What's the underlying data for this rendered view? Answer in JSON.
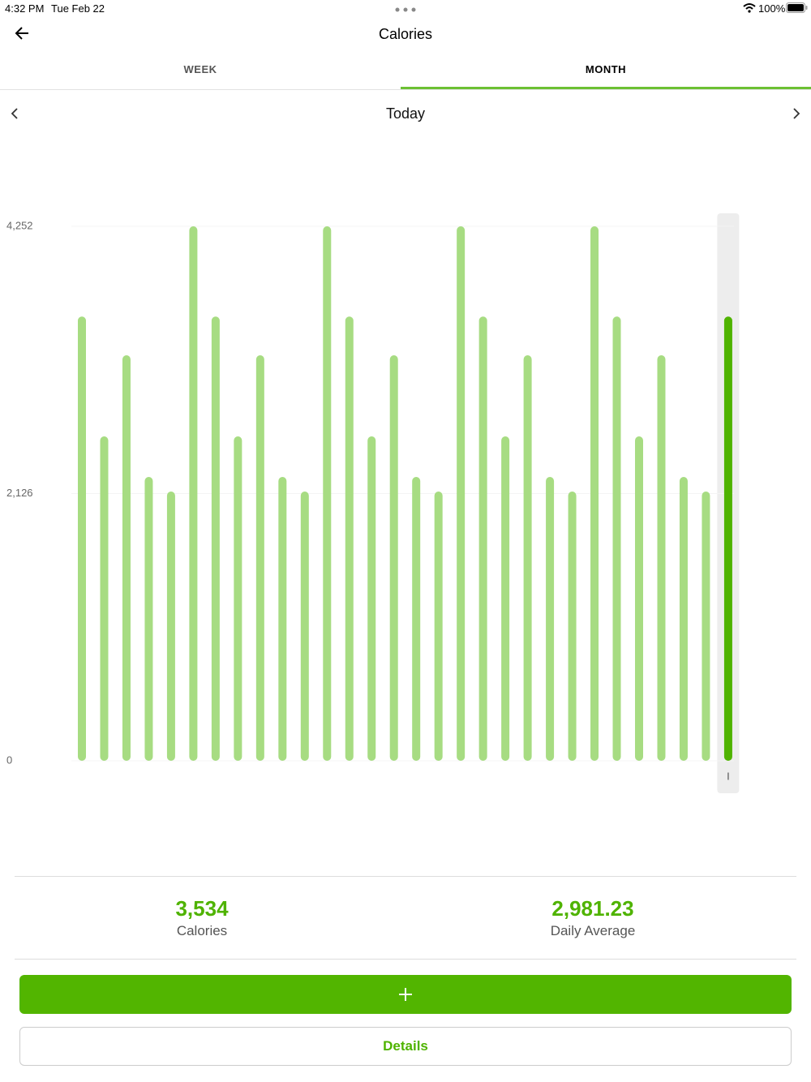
{
  "status_bar": {
    "time": "4:32 PM",
    "date": "Tue Feb 22",
    "battery": "100%"
  },
  "header": {
    "title": "Calories"
  },
  "tabs": [
    "WEEK",
    "MONTH"
  ],
  "period": "Today",
  "chart_data": {
    "type": "bar",
    "categories": [
      null,
      null,
      null,
      null,
      null,
      null,
      null,
      null,
      null,
      null,
      null,
      null,
      null,
      null,
      null,
      null,
      null,
      null,
      null,
      null,
      null,
      null,
      null,
      null,
      null,
      null,
      null,
      null,
      null,
      "I"
    ],
    "values": [
      3534,
      2581,
      3226,
      2258,
      2142,
      4252,
      3534,
      2581,
      3226,
      2258,
      2142,
      4252,
      3534,
      2581,
      3226,
      2258,
      2142,
      4252,
      3534,
      2581,
      3226,
      2258,
      2142,
      4252,
      3534,
      2581,
      3226,
      2258,
      2142,
      3534
    ],
    "colors": [
      "#a7dc82",
      "#a7dc82",
      "#a7dc82",
      "#a7dc82",
      "#a7dc82",
      "#a7dc82",
      "#a7dc82",
      "#a7dc82",
      "#a7dc82",
      "#a7dc82",
      "#a7dc82",
      "#a7dc82",
      "#a7dc82",
      "#a7dc82",
      "#a7dc82",
      "#a7dc82",
      "#a7dc82",
      "#a7dc82",
      "#a7dc82",
      "#a7dc82",
      "#a7dc82",
      "#a7dc82",
      "#a7dc82",
      "#a7dc82",
      "#a7dc82",
      "#a7dc82",
      "#a7dc82",
      "#a7dc82",
      "#a7dc82",
      "#4fb300"
    ],
    "ylim": [
      0,
      4252
    ],
    "yticks": [
      0,
      {
        "value": 2126,
        "label": "2,126"
      },
      {
        "value": 4252,
        "label": "4,252"
      }
    ],
    "grid": true
  },
  "stats": [
    {
      "value": "3,534",
      "label": "Calories"
    },
    {
      "value": "2,981.23",
      "label": "Daily Average"
    }
  ],
  "buttons": {
    "details": "Details"
  }
}
